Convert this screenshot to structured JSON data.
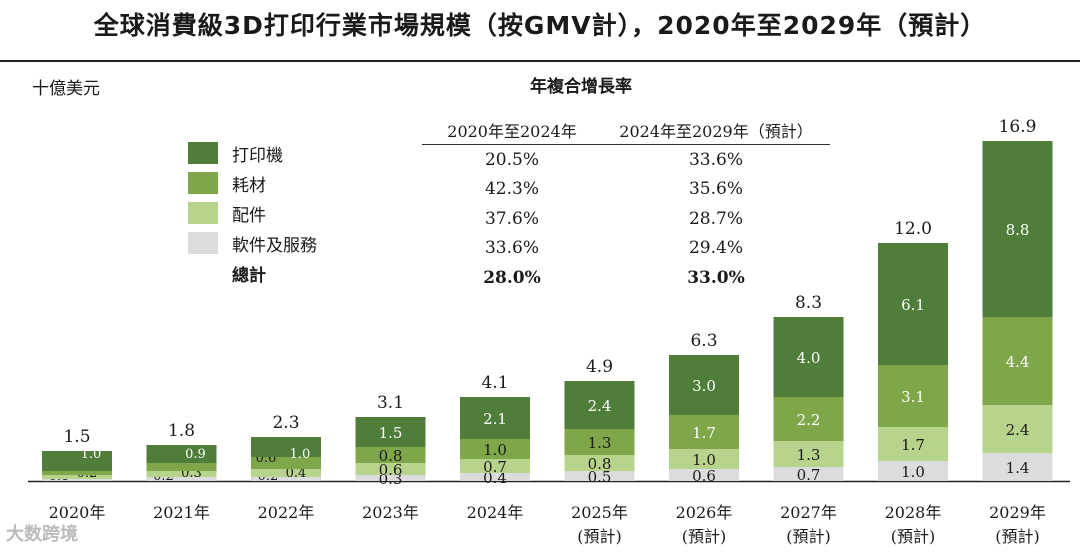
{
  "title": "全球消費級3D打印行業市場規模（按GMV計），2020年至2029年（預計）",
  "unit": "十億美元",
  "cagr_header": "年複合增長率",
  "cagr_columns": [
    "2020年至2024年",
    "2024年至2029年（預計）"
  ],
  "cagr_rows": [
    {
      "label": "打印機",
      "v1": "20.5%",
      "v2": "33.6%",
      "color": "#4f7d3a"
    },
    {
      "label": "耗材",
      "v1": "42.3%",
      "v2": "35.6%",
      "color": "#80a64a"
    },
    {
      "label": "配件",
      "v1": "37.6%",
      "v2": "28.7%",
      "color": "#b6d48b"
    },
    {
      "label": "軟件及服務",
      "v1": "33.6%",
      "v2": "29.4%",
      "color": "#dcdcdc"
    }
  ],
  "cagr_total": {
    "label": "總計",
    "v1": "28.0%",
    "v2": "33.0%"
  },
  "watermark": "大数跨境",
  "chart_data": {
    "type": "bar",
    "stacked": true,
    "title": "全球消費級3D打印行業市場規模（按GMV計），2020年至2029年（預計）",
    "ylabel": "十億美元",
    "categories": [
      "2020年",
      "2021年",
      "2022年",
      "2023年",
      "2024年",
      "2025年",
      "2026年",
      "2027年",
      "2028年",
      "2029年"
    ],
    "category_sublabels": [
      "",
      "",
      "",
      "",
      "",
      "(預計)",
      "(預計)",
      "(預計)",
      "(預計)",
      "(預計)"
    ],
    "series": [
      {
        "name": "軟件及服務",
        "color": "#dcdcdc",
        "values": [
          0.1,
          0.2,
          0.2,
          0.3,
          0.4,
          0.5,
          0.6,
          0.7,
          1.0,
          1.4
        ]
      },
      {
        "name": "配件",
        "color": "#b6d48b",
        "values": [
          0.2,
          0.3,
          0.4,
          0.6,
          0.7,
          0.8,
          1.0,
          1.3,
          1.7,
          2.4
        ]
      },
      {
        "name": "耗材",
        "color": "#80a64a",
        "values": [
          0.2,
          0.4,
          0.6,
          0.8,
          1.0,
          1.3,
          1.7,
          2.2,
          3.1,
          4.4
        ]
      },
      {
        "name": "打印機",
        "color": "#4f7d3a",
        "values": [
          1.0,
          0.9,
          1.0,
          1.5,
          2.1,
          2.4,
          3.0,
          4.0,
          6.1,
          8.8
        ]
      }
    ],
    "totals": [
      1.5,
      1.8,
      2.3,
      3.1,
      4.1,
      4.9,
      6.3,
      8.3,
      12.0,
      16.9
    ],
    "ylim": [
      0,
      16.9
    ]
  }
}
